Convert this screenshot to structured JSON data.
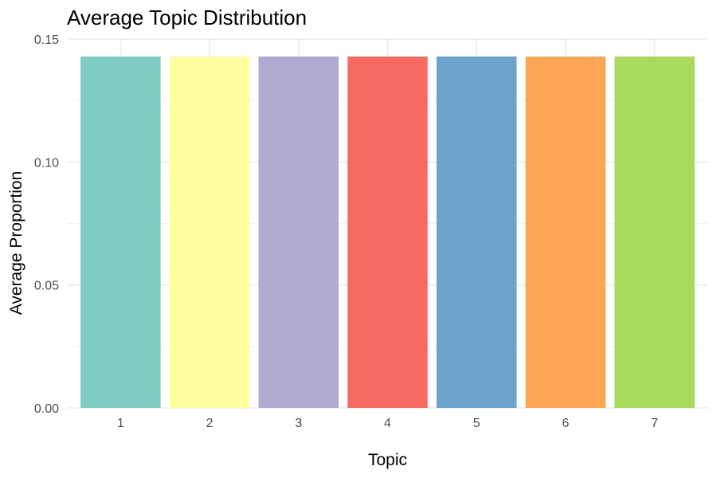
{
  "chart_data": {
    "type": "bar",
    "title": "Average Topic Distribution",
    "xlabel": "Topic",
    "ylabel": "Average Proportion",
    "categories": [
      "1",
      "2",
      "3",
      "4",
      "5",
      "6",
      "7"
    ],
    "values": [
      0.1429,
      0.1429,
      0.1429,
      0.1429,
      0.1429,
      0.1429,
      0.1429
    ],
    "colors": [
      "#80CDC1",
      "#FFFFA0",
      "#B1AAD0",
      "#F76A62",
      "#6BA3CA",
      "#FCA653",
      "#A8DB5B"
    ],
    "ylim": [
      0,
      0.15
    ],
    "yticks": [
      0,
      0.05,
      0.1,
      0.15
    ],
    "ytick_labels": [
      "0.00",
      "0.05",
      "0.10",
      "0.15"
    ],
    "grid": true,
    "legend": "none"
  }
}
